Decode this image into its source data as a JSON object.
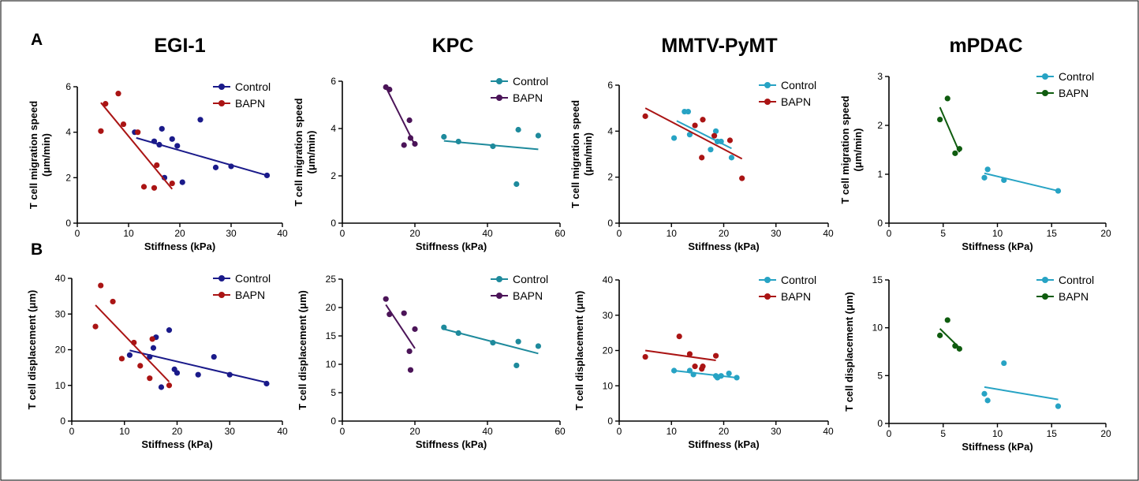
{
  "panel_labels": [
    "A",
    "B"
  ],
  "column_titles": [
    "EGI-1",
    "KPC",
    "MMTV-PyMT",
    "mPDAC"
  ],
  "colors": {
    "control_navy": "#1a1a8a",
    "bapn_red": "#aa1414",
    "control_teal": "#1e8a9c",
    "bapn_purple": "#4b1458",
    "control_cyan": "#27a3c4",
    "bapn_green": "#0f5c0f"
  },
  "chart_data": [
    {
      "type": "scatter",
      "panel": "A",
      "title": "EGI-1",
      "xlabel": "Stiffness (kPa)",
      "ylabel": "T cell migration speed (μm/min)",
      "xlim": [
        0,
        40
      ],
      "ylim": [
        0,
        6
      ],
      "x_ticks": [
        "0",
        "10",
        "20",
        "30",
        "40"
      ],
      "y_ticks": [
        "0",
        "2",
        "4",
        "6"
      ],
      "legend_position": "top-right",
      "series": [
        {
          "name": "Control",
          "color": "#1a1a8a",
          "x": [
            11.2,
            15,
            16,
            16.5,
            18.5,
            19.5,
            20.5,
            24,
            27,
            30,
            37,
            17
          ],
          "y": [
            4.0,
            3.6,
            3.45,
            4.15,
            3.7,
            3.4,
            1.8,
            4.55,
            2.45,
            2.5,
            2.1,
            2.0
          ],
          "fit": [
            [
              11.5,
              3.75
            ],
            [
              37,
              2.1
            ]
          ]
        },
        {
          "name": "BAPN",
          "color": "#aa1414",
          "x": [
            4.6,
            5.5,
            8,
            9,
            11.8,
            13,
            15,
            15.5,
            18.5
          ],
          "y": [
            4.05,
            5.25,
            5.7,
            4.35,
            4.0,
            1.6,
            1.55,
            2.55,
            1.75
          ],
          "fit": [
            [
              4.6,
              5.3
            ],
            [
              18.5,
              1.5
            ]
          ]
        }
      ]
    },
    {
      "type": "scatter",
      "panel": "A",
      "title": "KPC",
      "xlabel": "Stiffness (kPa)",
      "ylabel": "T cell migration speed (μm/min)",
      "xlim": [
        0,
        60
      ],
      "ylim": [
        0,
        6
      ],
      "x_ticks": [
        "0",
        "20",
        "40",
        "60"
      ],
      "y_ticks": [
        "0",
        "2",
        "4",
        "6"
      ],
      "legend_position": "top-right",
      "series": [
        {
          "name": "Control",
          "color": "#1e8a9c",
          "x": [
            28,
            32,
            41.5,
            48,
            48.5,
            54
          ],
          "y": [
            3.65,
            3.45,
            3.25,
            1.65,
            3.95,
            3.7
          ],
          "fit": [
            [
              28,
              3.48
            ],
            [
              54,
              3.12
            ]
          ]
        },
        {
          "name": "BAPN",
          "color": "#4b1458",
          "x": [
            12,
            13,
            17,
            18.5,
            18.8,
            20
          ],
          "y": [
            5.75,
            5.65,
            3.3,
            4.35,
            3.6,
            3.35
          ],
          "fit": [
            [
              12,
              5.75
            ],
            [
              20,
              3.3
            ]
          ]
        }
      ]
    },
    {
      "type": "scatter",
      "panel": "A",
      "title": "MMTV-PyMT",
      "xlabel": "Stiffness (kPa)",
      "ylabel": "T cell migration speed (μm/min)",
      "xlim": [
        0,
        40
      ],
      "ylim": [
        0,
        6
      ],
      "x_ticks": [
        "0",
        "10",
        "20",
        "30",
        "40"
      ],
      "y_ticks": [
        "0",
        "2",
        "4",
        "6"
      ],
      "legend_position": "top-right",
      "series": [
        {
          "name": "Control",
          "color": "#27a3c4",
          "x": [
            10.5,
            12.5,
            13.2,
            13.5,
            17.5,
            18.5,
            18.8,
            19.5,
            21.5
          ],
          "y": [
            3.7,
            4.85,
            4.85,
            3.85,
            3.2,
            4.0,
            3.55,
            3.55,
            2.85
          ],
          "fit": [
            [
              11,
              4.45
            ],
            [
              21.5,
              3.25
            ]
          ]
        },
        {
          "name": "BAPN",
          "color": "#aa1414",
          "x": [
            5,
            14.5,
            15.8,
            16,
            18.2,
            21.2,
            23.5
          ],
          "y": [
            4.65,
            4.25,
            2.85,
            4.5,
            3.8,
            3.6,
            1.95
          ],
          "fit": [
            [
              5,
              5.0
            ],
            [
              23.5,
              2.8
            ]
          ]
        }
      ]
    },
    {
      "type": "scatter",
      "panel": "A",
      "title": "mPDAC",
      "xlabel": "Stiffness (kPa)",
      "ylabel": "T cell migration speed (μm/min)",
      "xlim": [
        0,
        20
      ],
      "ylim": [
        0,
        3
      ],
      "x_ticks": [
        "0",
        "5",
        "10",
        "15",
        "20"
      ],
      "y_ticks": [
        "0",
        "1",
        "2",
        "3"
      ],
      "legend_position": "top-right",
      "series": [
        {
          "name": "Control",
          "color": "#27a3c4",
          "x": [
            8.8,
            9.1,
            10.6,
            15.6
          ],
          "y": [
            0.93,
            1.1,
            0.88,
            0.66
          ],
          "fit": [
            [
              8.8,
              1.02
            ],
            [
              15.6,
              0.66
            ]
          ]
        },
        {
          "name": "BAPN",
          "color": "#0f5c0f",
          "x": [
            4.7,
            5.4,
            6.1,
            6.5
          ],
          "y": [
            2.12,
            2.55,
            1.43,
            1.52
          ],
          "fit": [
            [
              4.7,
              2.37
            ],
            [
              6.5,
              1.45
            ]
          ]
        }
      ]
    },
    {
      "type": "scatter",
      "panel": "B",
      "title": "EGI-1",
      "xlabel": "Stiffness (kPa)",
      "ylabel": "T cell displacement (μm)",
      "xlim": [
        0,
        40
      ],
      "ylim": [
        0,
        40
      ],
      "x_ticks": [
        "0",
        "10",
        "20",
        "30",
        "40"
      ],
      "y_ticks": [
        "0",
        "10",
        "20",
        "30",
        "40"
      ],
      "legend_position": "top-right",
      "series": [
        {
          "name": "Control",
          "color": "#1a1a8a",
          "x": [
            11,
            14.8,
            15.5,
            16,
            17,
            18.5,
            19.5,
            20,
            24,
            27,
            30,
            37
          ],
          "y": [
            18.5,
            18,
            20.5,
            23.5,
            9.5,
            25.5,
            14.5,
            13.5,
            13,
            18,
            13,
            10.5
          ],
          "fit": [
            [
              11,
              19.8
            ],
            [
              37,
              10.8
            ]
          ]
        },
        {
          "name": "BAPN",
          "color": "#aa1414",
          "x": [
            4.5,
            5.5,
            7.8,
            9.5,
            11.8,
            13,
            14.8,
            15.3,
            18.5
          ],
          "y": [
            26.5,
            38,
            33.5,
            17.5,
            22,
            15.5,
            12,
            23,
            10
          ],
          "fit": [
            [
              4.5,
              32.5
            ],
            [
              18.5,
              11
            ]
          ]
        }
      ]
    },
    {
      "type": "scatter",
      "panel": "B",
      "title": "KPC",
      "xlabel": "Stiffness (kPa)",
      "ylabel": "T cell displacement (μm)",
      "xlim": [
        0,
        60
      ],
      "ylim": [
        0,
        25
      ],
      "x_ticks": [
        "0",
        "20",
        "40",
        "60"
      ],
      "y_ticks": [
        "0",
        "5",
        "10",
        "15",
        "20",
        "25"
      ],
      "legend_position": "top-right",
      "series": [
        {
          "name": "Control",
          "color": "#1e8a9c",
          "x": [
            28,
            32,
            41.5,
            48,
            48.5,
            54
          ],
          "y": [
            16.5,
            15.5,
            13.8,
            9.8,
            14,
            13.2
          ],
          "fit": [
            [
              28,
              16.2
            ],
            [
              54,
              11.9
            ]
          ]
        },
        {
          "name": "BAPN",
          "color": "#4b1458",
          "x": [
            12,
            13,
            17,
            18.5,
            18.8,
            20
          ],
          "y": [
            21.5,
            18.8,
            19,
            12.3,
            9,
            16.2
          ],
          "fit": [
            [
              12,
              20.5
            ],
            [
              20,
              12.8
            ]
          ]
        }
      ]
    },
    {
      "type": "scatter",
      "panel": "B",
      "title": "MMTV-PyMT",
      "xlabel": "Stiffness (kPa)",
      "ylabel": "T cell displacement (μm)",
      "xlim": [
        0,
        40
      ],
      "ylim": [
        0,
        40
      ],
      "x_ticks": [
        "0",
        "10",
        "20",
        "30",
        "40"
      ],
      "y_ticks": [
        "0",
        "10",
        "20",
        "30",
        "40"
      ],
      "legend_position": "top-right",
      "series": [
        {
          "name": "Control",
          "color": "#27a3c4",
          "x": [
            10.5,
            13.5,
            14.2,
            18.5,
            18.8,
            19.5,
            21,
            22.5
          ],
          "y": [
            14.3,
            14.3,
            13.2,
            12.8,
            12.3,
            12.8,
            13.5,
            12.3
          ],
          "fit": [
            [
              10.5,
              14.3
            ],
            [
              22.5,
              12.3
            ]
          ]
        },
        {
          "name": "BAPN",
          "color": "#aa1414",
          "x": [
            5,
            11.5,
            13.5,
            14.5,
            15.8,
            16,
            18.5
          ],
          "y": [
            18.2,
            24,
            19,
            15.5,
            14.8,
            15.5,
            18.5
          ],
          "fit": [
            [
              5,
              20
            ],
            [
              18.5,
              17.2
            ]
          ]
        }
      ]
    },
    {
      "type": "scatter",
      "panel": "B",
      "title": "mPDAC",
      "xlabel": "Stiffness (kPa)",
      "ylabel": "T cell displacement (μm)",
      "xlim": [
        0,
        20
      ],
      "ylim": [
        0,
        15
      ],
      "x_ticks": [
        "0",
        "5",
        "10",
        "15",
        "20"
      ],
      "y_ticks": [
        "0",
        "5",
        "10",
        "15"
      ],
      "legend_position": "top-right",
      "series": [
        {
          "name": "Control",
          "color": "#27a3c4",
          "x": [
            8.8,
            9.1,
            10.6,
            15.6
          ],
          "y": [
            3.1,
            2.4,
            6.3,
            1.8
          ],
          "fit": [
            [
              8.8,
              3.8
            ],
            [
              15.6,
              2.5
            ]
          ]
        },
        {
          "name": "BAPN",
          "color": "#0f5c0f",
          "x": [
            4.7,
            5.4,
            6.1,
            6.5
          ],
          "y": [
            9.2,
            10.8,
            8.1,
            7.8
          ],
          "fit": [
            [
              4.7,
              9.9
            ],
            [
              6.5,
              7.9
            ]
          ]
        }
      ]
    }
  ]
}
